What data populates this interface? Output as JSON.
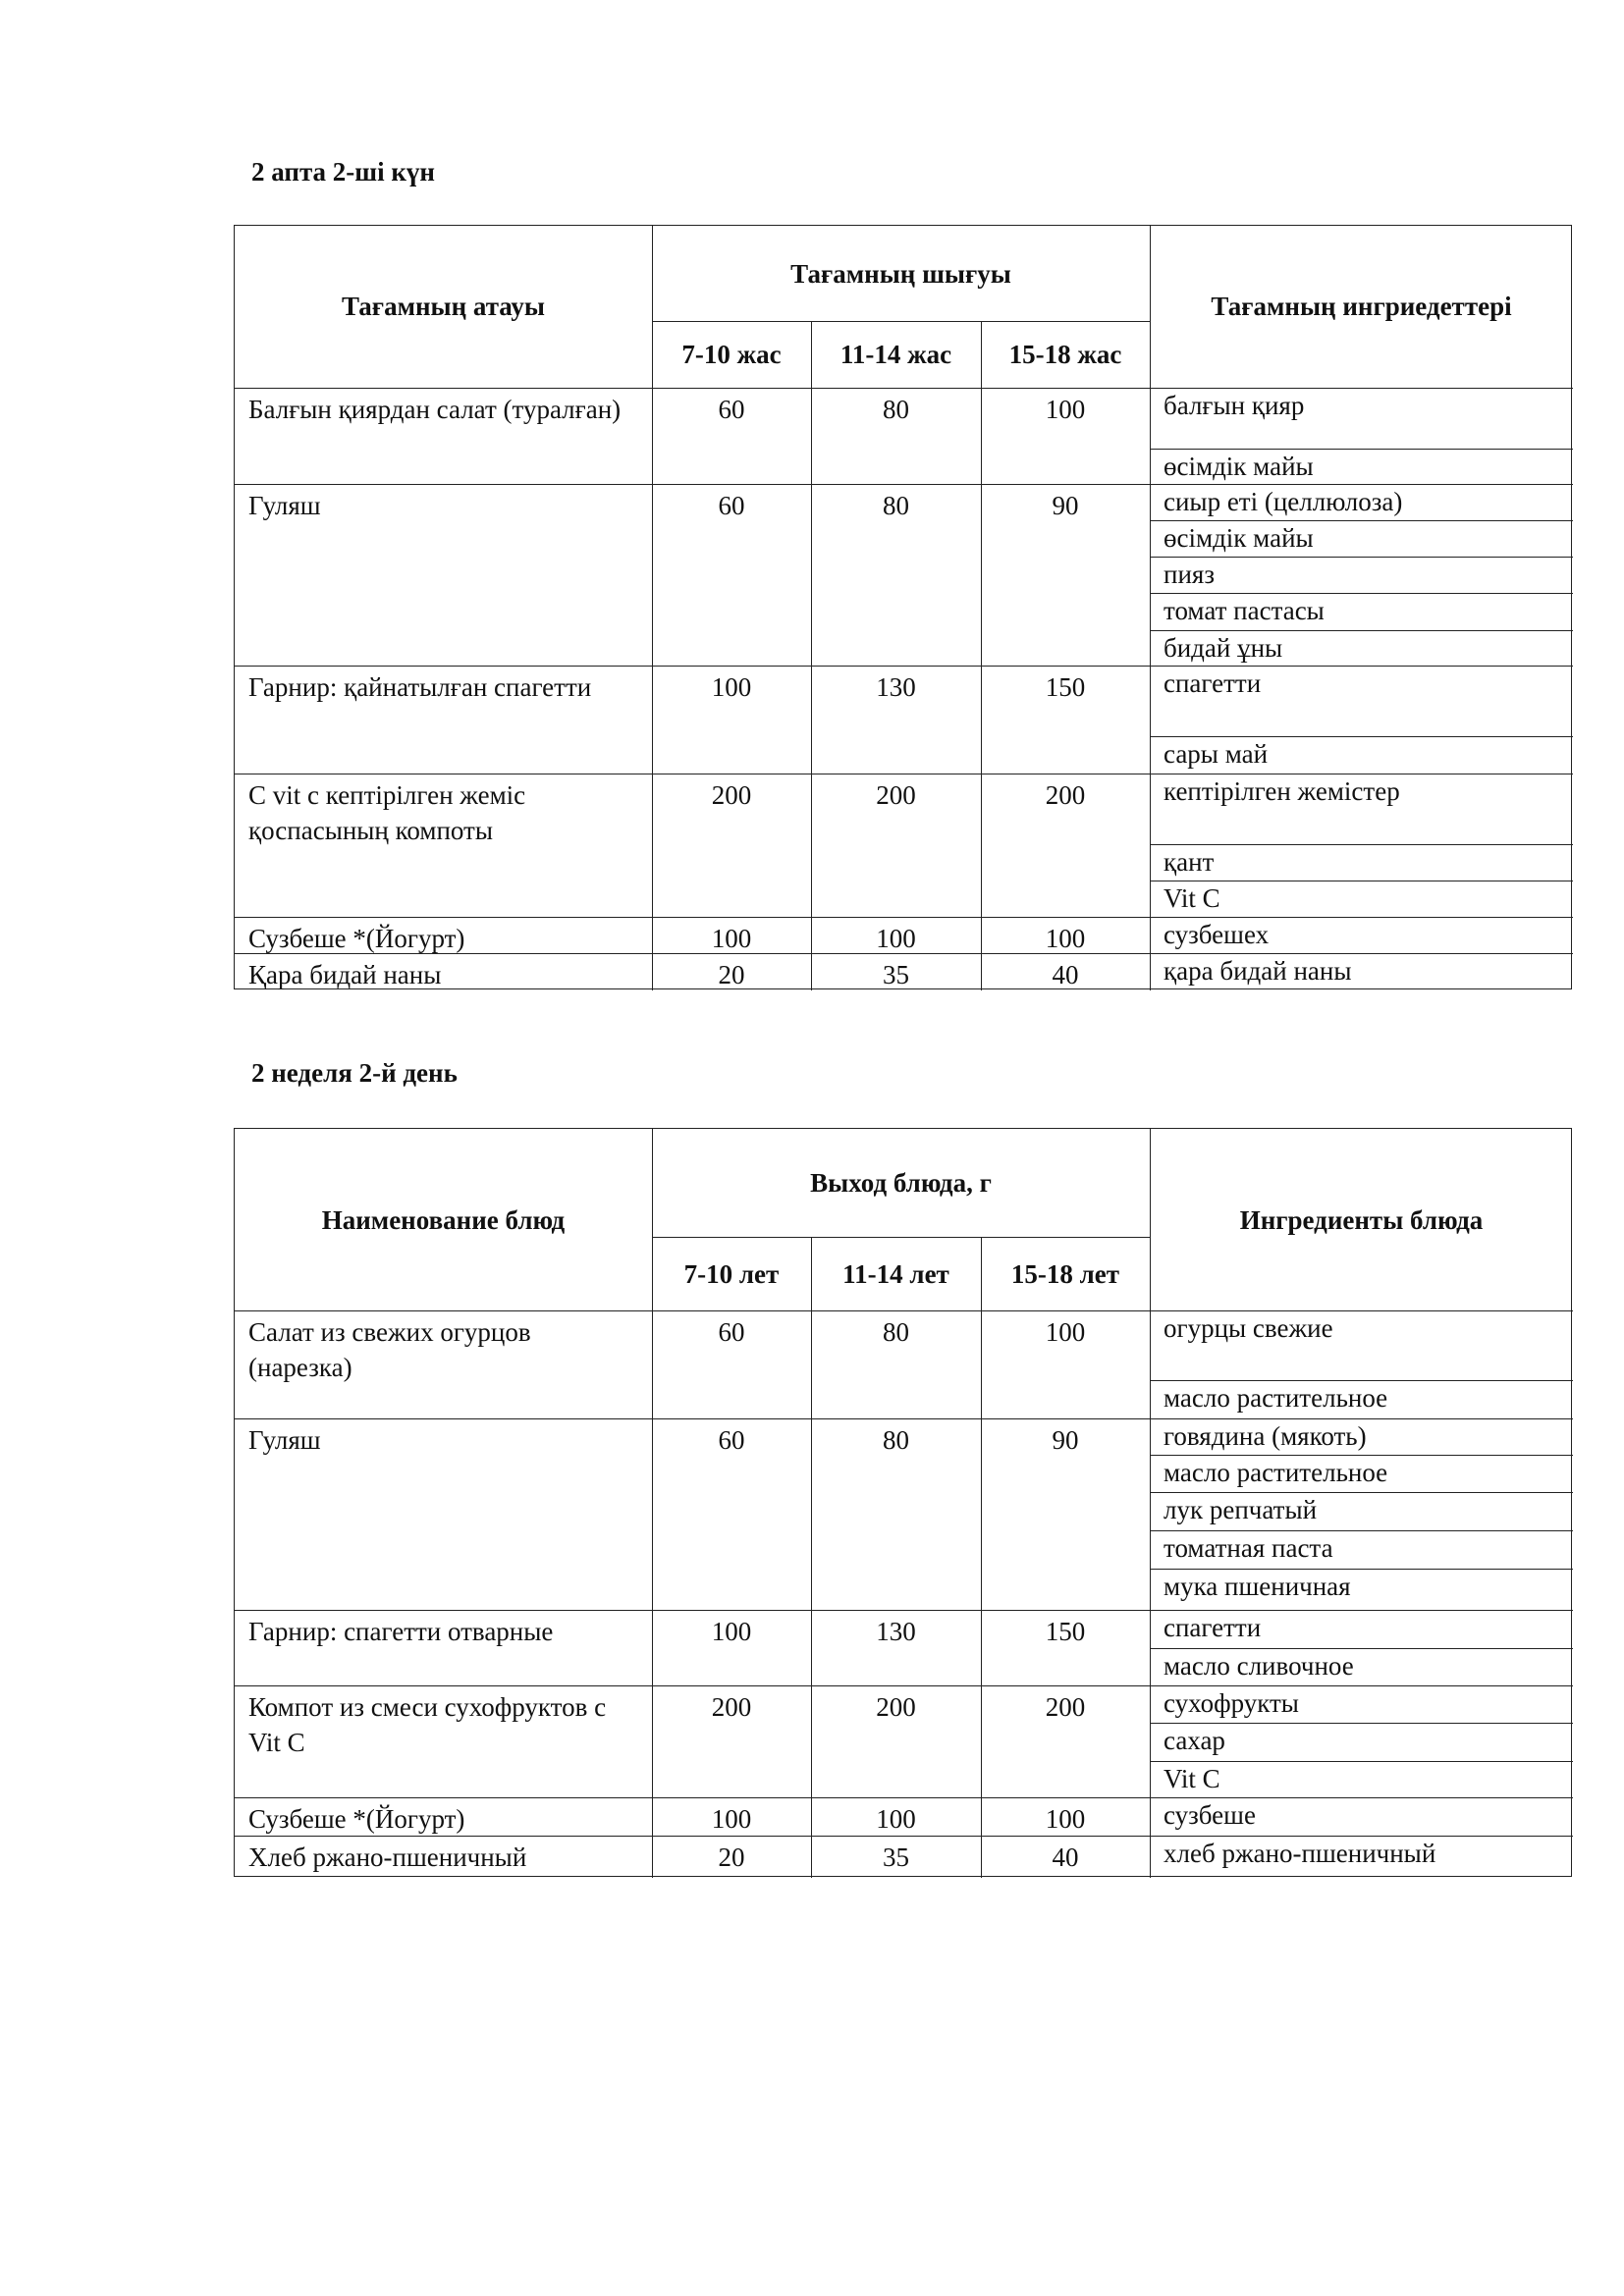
{
  "tables": [
    {
      "title": "2 апта 2-ші күн",
      "headers": {
        "name": "Тағамның атауы",
        "yield": "Тағамның шығуы",
        "ages": [
          "7-10 жас",
          "11-14 жас",
          "15-18 жас"
        ],
        "ingredients": "Тағамның ингриедеттері"
      },
      "rows": [
        {
          "name": "Балғын қиярдан салат (туралған)",
          "values": [
            "60",
            "80",
            "100"
          ],
          "ingredients": [
            "балғын қияр",
            "өсімдік майы"
          ]
        },
        {
          "name": "Гуляш",
          "values": [
            "60",
            "80",
            "90"
          ],
          "ingredients": [
            "сиыр еті (целлюлоза)",
            "өсімдік майы",
            "пияз",
            "томат пастасы",
            "бидай ұны"
          ]
        },
        {
          "name": "Гарнир: қайнатылған спагетти",
          "values": [
            "100",
            "130",
            "150"
          ],
          "ingredients": [
            "спагетти",
            "сары май"
          ]
        },
        {
          "name": "С vit с кептірілген жеміс қоспасының компоты",
          "values": [
            "200",
            "200",
            "200"
          ],
          "ingredients": [
            "кептірілген жемістер",
            "қант",
            "Vit C"
          ]
        },
        {
          "name": "Сузбеше *(Йогурт)",
          "values": [
            "100",
            "100",
            "100"
          ],
          "ingredients": [
            "сузбешех"
          ]
        },
        {
          "name": "Қара бидай наны",
          "values": [
            "20",
            "35",
            "40"
          ],
          "ingredients": [
            "қара бидай наны"
          ]
        }
      ]
    },
    {
      "title": "2 неделя 2-й день",
      "headers": {
        "name": "Наименование блюд",
        "yield": "Выход блюда, г",
        "ages": [
          "7-10 лет",
          "11-14 лет",
          "15-18 лет"
        ],
        "ingredients": "Ингредиенты блюда"
      },
      "rows": [
        {
          "name": "Салат из свежих огурцов (нарезка)",
          "values": [
            "60",
            "80",
            "100"
          ],
          "ingredients": [
            "огурцы свежие",
            "масло растительное"
          ]
        },
        {
          "name": "Гуляш",
          "values": [
            "60",
            "80",
            "90"
          ],
          "ingredients": [
            "говядина (мякоть)",
            "масло растительное",
            "лук репчатый",
            "томатная паста",
            "мука пшеничная"
          ]
        },
        {
          "name": "Гарнир: спагетти отварные",
          "values": [
            "100",
            "130",
            "150"
          ],
          "ingredients": [
            "спагетти",
            "масло сливочное"
          ]
        },
        {
          "name": "Компот из смеси сухофруктов с Vit C",
          "values": [
            "200",
            "200",
            "200"
          ],
          "ingredients": [
            "сухофрукты",
            "сахар",
            "Vit C"
          ]
        },
        {
          "name": "Сузбеше *(Йогурт)",
          "values": [
            "100",
            "100",
            "100"
          ],
          "ingredients": [
            "сузбеше"
          ]
        },
        {
          "name": "Хлеб ржано-пшеничный",
          "values": [
            "20",
            "35",
            "40"
          ],
          "ingredients": [
            "хлеб ржано-пшеничный"
          ]
        }
      ]
    }
  ]
}
